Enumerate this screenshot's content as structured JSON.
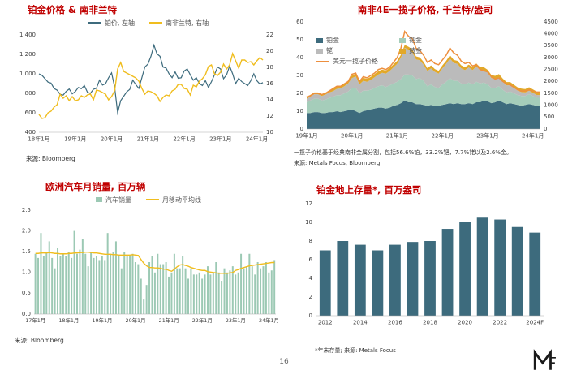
{
  "footer": {
    "page_number": "16"
  },
  "colors": {
    "title": "#C00000",
    "platinum": "#3D6B7D",
    "rand": "#F0BD1E",
    "palladium": "#A5CDBA",
    "rhodium": "#BBBBBB",
    "gold": "#E2A829",
    "usd_basket": "#ED8F3E",
    "car_bars": "#9CC9B4",
    "ma_line": "#F0BD1E",
    "stock_bars": "#3D6B7D",
    "axis_text": "#404040"
  },
  "chart_data": [
    {
      "id": "platinum_rand",
      "type": "line",
      "title": "铂金价格 & 南非兰特",
      "source": "来源: Bloomberg",
      "x_tick_labels": [
        "18年1月",
        "19年1月",
        "20年1月",
        "21年1月",
        "22年1月",
        "23年1月",
        "24年1月"
      ],
      "left_axis": {
        "min": 400,
        "max": 1400,
        "ticks": [
          "400",
          "600",
          "800",
          "1,000",
          "1,200",
          "1,400"
        ]
      },
      "right_axis": {
        "min": 10,
        "max": 22,
        "ticks": [
          "10",
          "12",
          "14",
          "16",
          "18",
          "20",
          "22"
        ]
      },
      "series": [
        {
          "name": "铂价, 左轴",
          "axis": "left",
          "values": [
            1000,
            985,
            950,
            915,
            905,
            850,
            833,
            790,
            782,
            820,
            845,
            795,
            818,
            860,
            848,
            880,
            812,
            800,
            842,
            852,
            935,
            885,
            900,
            960,
            1010,
            865,
            600,
            725,
            770,
            815,
            840,
            935,
            890,
            850,
            960,
            1070,
            1100,
            1180,
            1295,
            1205,
            1180,
            1070,
            1060,
            1000,
            960,
            1020,
            955,
            960,
            1030,
            1050,
            990,
            935,
            960,
            900,
            880,
            930,
            860,
            920,
            990,
            1070,
            1050,
            950,
            990,
            1080,
            1000,
            900,
            955,
            920,
            900,
            880,
            930,
            1000,
            930,
            895,
            910
          ]
        },
        {
          "name": "南非兰特, 右轴",
          "axis": "right",
          "values": [
            12.2,
            11.7,
            11.8,
            12.4,
            12.6,
            13.1,
            13.4,
            14.7,
            14.2,
            14.5,
            13.9,
            14.4,
            13.9,
            14.0,
            14.5,
            14.3,
            14.6,
            14.7,
            14.0,
            15.2,
            15.1,
            14.9,
            14.7,
            14.0,
            14.4,
            15.1,
            17.8,
            18.6,
            17.5,
            17.3,
            17.1,
            16.9,
            16.7,
            16.3,
            15.4,
            14.7,
            15.1,
            15.0,
            14.8,
            14.5,
            13.8,
            14.3,
            14.6,
            14.5,
            15.1,
            15.3,
            15.9,
            15.9,
            15.4,
            15.3,
            14.6,
            15.8,
            15.6,
            16.3,
            16.6,
            17.1,
            18.1,
            18.3,
            17.2,
            17.0,
            17.4,
            18.4,
            17.8,
            18.3,
            19.7,
            18.8,
            17.9,
            18.9,
            18.9,
            18.6,
            18.7,
            18.3,
            18.8,
            19.2,
            18.9
          ]
        }
      ]
    },
    {
      "id": "basket",
      "type": "area",
      "title": "南非4E一揽子价格, 千兰特/盎司",
      "footnote": "一揽子价格基于经典南非金属分割，包括56.6%铂，33.2%钯，7.7%铑以及2.6%金。",
      "source": "来源: Metals Focus, Bloomberg",
      "x_tick_labels": [
        "19年1月",
        "20年1月",
        "21年1月",
        "22年1月",
        "23年1月",
        "24年1月"
      ],
      "left_axis": {
        "min": 0,
        "max": 60,
        "ticks": [
          "0",
          "10",
          "20",
          "30",
          "40",
          "50",
          "60"
        ]
      },
      "right_axis": {
        "min": 0,
        "max": 4500,
        "ticks": [
          "0",
          "500",
          "1000",
          "1500",
          "2000",
          "2500",
          "3000",
          "3500",
          "4000",
          "4500"
        ]
      },
      "stack_series": [
        {
          "name": "铂金",
          "values": [
            9,
            9,
            9.5,
            9.5,
            9,
            9,
            9.5,
            9.5,
            10,
            9.5,
            10,
            10.5,
            11,
            10,
            9,
            10,
            10.5,
            11,
            11.5,
            12,
            12,
            11.5,
            12,
            13,
            13.5,
            14.5,
            16,
            15,
            15,
            14,
            14,
            13.5,
            13,
            13.5,
            13,
            13,
            13.5,
            14,
            14.5,
            14,
            14.5,
            14,
            14,
            14.5,
            14,
            15,
            15,
            16,
            15.5,
            14.5,
            15,
            16,
            15,
            14,
            14.5,
            14,
            13.5,
            13,
            13.5,
            14,
            13.5,
            13,
            13
          ]
        },
        {
          "name": "钯金",
          "values": [
            6,
            7,
            7.5,
            7.5,
            7,
            7.5,
            8,
            8.5,
            9,
            9.5,
            10,
            10.5,
            12,
            13,
            11,
            11.5,
            11,
            11,
            11.5,
            12,
            12.5,
            12,
            12.5,
            12.5,
            13,
            13.5,
            14.5,
            15.5,
            15,
            14,
            14.5,
            13.5,
            11,
            11.5,
            10.5,
            10,
            11.5,
            12.5,
            14,
            13,
            12.5,
            11.5,
            11,
            11.5,
            11,
            11.5,
            10.5,
            10,
            9.5,
            8.5,
            8,
            8,
            7,
            6.5,
            6.5,
            6,
            5.5,
            5.5,
            5,
            5.5,
            5,
            4.5,
            4.5
          ]
        },
        {
          "name": "铑",
          "values": [
            2,
            2.2,
            2.5,
            2.5,
            2.5,
            2.8,
            3,
            3.2,
            3.5,
            3.8,
            4,
            4.5,
            5.5,
            6.5,
            5,
            5.5,
            5,
            5.5,
            6,
            6.5,
            7,
            7.5,
            8,
            9,
            10,
            12,
            15,
            14,
            13,
            11,
            10,
            9,
            8.5,
            9,
            8.5,
            8,
            9,
            10,
            11,
            10,
            9.5,
            8.5,
            8,
            8.5,
            8,
            8.5,
            7.5,
            7,
            6.5,
            5.5,
            5,
            5,
            4.5,
            4,
            3.5,
            3,
            2.5,
            2.2,
            2,
            2,
            1.8,
            1.6,
            1.5
          ]
        },
        {
          "name": "黄金",
          "values": [
            1,
            1,
            1,
            1,
            1,
            1.1,
            1.2,
            1.3,
            1.3,
            1.3,
            1.3,
            1.3,
            1.4,
            1.5,
            1.6,
            1.7,
            1.7,
            1.7,
            1.8,
            1.9,
            1.8,
            1.8,
            1.7,
            1.7,
            1.7,
            1.6,
            1.6,
            1.6,
            1.7,
            1.7,
            1.6,
            1.6,
            1.6,
            1.6,
            1.6,
            1.6,
            1.6,
            1.7,
            1.8,
            1.7,
            1.7,
            1.7,
            1.6,
            1.6,
            1.6,
            1.7,
            1.6,
            1.6,
            1.7,
            1.7,
            1.8,
            1.8,
            1.8,
            1.8,
            1.8,
            1.8,
            1.8,
            1.9,
            1.9,
            1.9,
            1.9,
            1.9,
            2
          ]
        }
      ],
      "line_series": {
        "name": "美元一揽子价格",
        "axis": "right",
        "values": [
          1350,
          1400,
          1500,
          1500,
          1450,
          1500,
          1600,
          1700,
          1800,
          1800,
          1900,
          2000,
          2300,
          2350,
          2000,
          2200,
          2150,
          2250,
          2350,
          2500,
          2550,
          2500,
          2600,
          2800,
          3000,
          3400,
          4100,
          3900,
          3800,
          3400,
          3300,
          3100,
          2800,
          2900,
          2750,
          2700,
          2900,
          3100,
          3400,
          3200,
          3100,
          2850,
          2750,
          2800,
          2650,
          2700,
          2500,
          2450,
          2400,
          2200,
          2100,
          2150,
          2000,
          1900,
          1850,
          1750,
          1650,
          1600,
          1600,
          1650,
          1600,
          1550,
          1550
        ]
      }
    },
    {
      "id": "car_sales",
      "type": "bar",
      "title": "欧洲汽车月销量, 百万辆",
      "source": "来源: Bloomberg",
      "x_tick_labels": [
        "17年1月",
        "18年1月",
        "19年1月",
        "20年1月",
        "21年1月",
        "22年1月",
        "23年1月",
        "24年1月"
      ],
      "y_axis": {
        "min": 0,
        "max": 2.5,
        "ticks": [
          "0.0",
          "0.5",
          "1.0",
          "1.5",
          "2.0",
          "2.5"
        ]
      },
      "bars": {
        "name": "汽车销量",
        "values": [
          1.45,
          1.35,
          1.95,
          1.4,
          1.5,
          1.75,
          1.35,
          1.1,
          1.6,
          1.4,
          1.45,
          1.4,
          1.5,
          1.35,
          2.0,
          1.45,
          1.55,
          1.8,
          1.45,
          1.15,
          1.5,
          1.35,
          1.4,
          1.3,
          1.4,
          1.3,
          1.95,
          1.45,
          1.5,
          1.75,
          1.4,
          1.1,
          1.5,
          1.4,
          1.4,
          1.45,
          1.25,
          1.2,
          0.85,
          0.35,
          0.7,
          1.25,
          1.4,
          1.0,
          1.45,
          1.2,
          1.2,
          1.25,
          0.9,
          1.0,
          1.45,
          1.1,
          1.1,
          1.4,
          1.1,
          0.85,
          1.1,
          0.95,
          0.95,
          1.0,
          0.85,
          0.95,
          1.15,
          0.95,
          1.0,
          1.25,
          1.0,
          0.8,
          1.1,
          1.0,
          1.05,
          1.15,
          0.95,
          1.0,
          1.45,
          1.1,
          1.15,
          1.45,
          1.15,
          0.95,
          1.25,
          1.1,
          1.15,
          1.25,
          1.0,
          1.05,
          1.3
        ]
      },
      "line": {
        "name": "月移动平均线",
        "values": [
          1.46,
          1.46,
          1.47,
          1.47,
          1.47,
          1.48,
          1.47,
          1.46,
          1.46,
          1.45,
          1.45,
          1.45,
          1.46,
          1.46,
          1.47,
          1.47,
          1.48,
          1.48,
          1.49,
          1.49,
          1.48,
          1.47,
          1.47,
          1.46,
          1.45,
          1.44,
          1.44,
          1.44,
          1.43,
          1.43,
          1.42,
          1.42,
          1.42,
          1.42,
          1.42,
          1.43,
          1.42,
          1.41,
          1.31,
          1.22,
          1.16,
          1.12,
          1.12,
          1.11,
          1.11,
          1.1,
          1.08,
          1.08,
          1.05,
          1.03,
          1.08,
          1.14,
          1.18,
          1.19,
          1.17,
          1.15,
          1.12,
          1.1,
          1.08,
          1.06,
          1.05,
          1.05,
          1.02,
          1.01,
          1.0,
          0.99,
          0.98,
          0.98,
          0.98,
          0.98,
          0.99,
          1.0,
          1.05,
          1.07,
          1.1,
          1.12,
          1.14,
          1.16,
          1.17,
          1.18,
          1.19,
          1.2,
          1.21,
          1.22,
          1.23,
          1.24,
          1.24
        ]
      }
    },
    {
      "id": "stocks",
      "type": "bar",
      "title": "铂金地上存量*, 百万盎司",
      "footnote": "*年末存量; 来源: Metals Focus",
      "categories": [
        "2012",
        "2013",
        "2014",
        "2015",
        "2016",
        "2017",
        "2018",
        "2019",
        "2020",
        "2021",
        "2022",
        "2023",
        "2024F"
      ],
      "x_tick_labels": [
        "2012",
        "2014",
        "2016",
        "2018",
        "2020",
        "2022",
        "2024F"
      ],
      "y_axis": {
        "min": 0,
        "max": 12,
        "ticks": [
          "0",
          "2",
          "4",
          "6",
          "8",
          "10",
          "12"
        ]
      },
      "values": [
        7.0,
        8.0,
        7.6,
        7.0,
        7.6,
        7.9,
        8.0,
        9.3,
        10.0,
        10.5,
        10.3,
        9.5,
        8.9
      ]
    }
  ]
}
